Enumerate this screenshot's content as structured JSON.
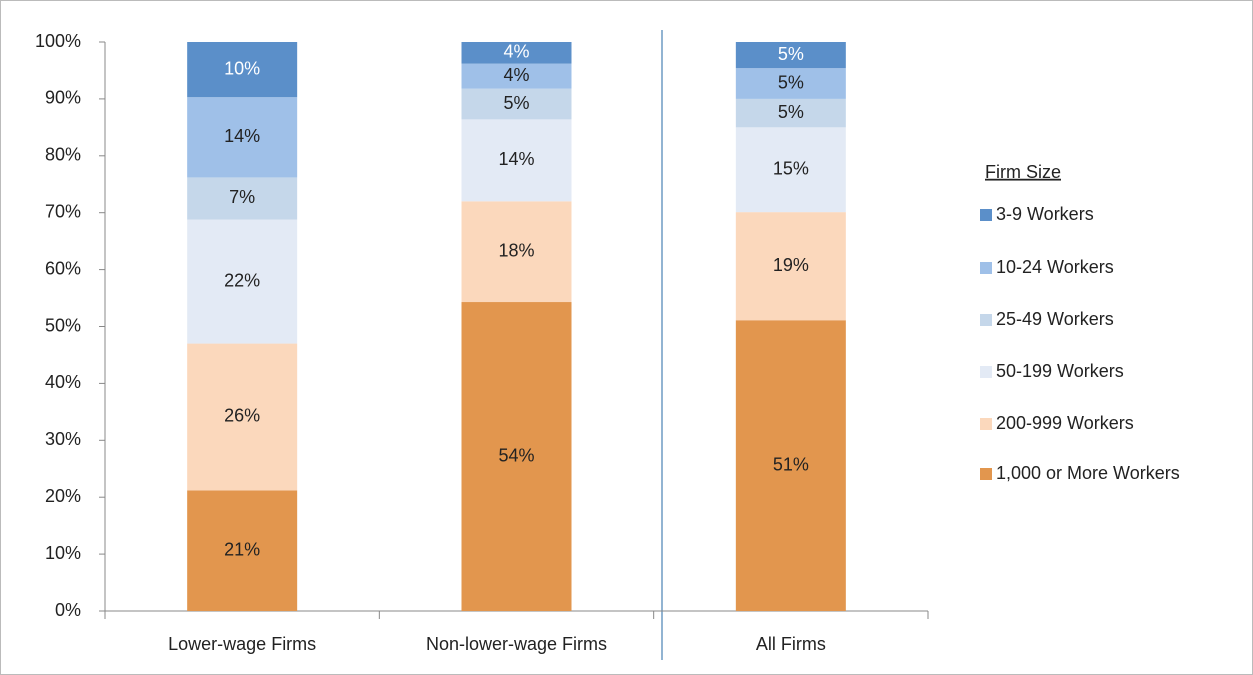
{
  "chart_data": {
    "type": "stacked_bar",
    "categories": [
      "Lower-wage Firms",
      "Non-lower-wage Firms",
      "All Firms"
    ],
    "series": [
      {
        "name": "1,000 or More Workers",
        "color": "#e2964e",
        "values": [
          21.2,
          54.3,
          51.1
        ],
        "value_labels": [
          "21%",
          "54%",
          "51%"
        ]
      },
      {
        "name": "200-999 Workers",
        "color": "#fbd8bc",
        "values": [
          25.8,
          17.7,
          19.0
        ],
        "value_labels": [
          "26%",
          "18%",
          "19%"
        ]
      },
      {
        "name": "50-199 Workers",
        "color": "#e3eaf5",
        "values": [
          21.8,
          14.4,
          14.9
        ],
        "value_labels": [
          "22%",
          "14%",
          "15%"
        ]
      },
      {
        "name": "25-49 Workers",
        "color": "#c5d7ea",
        "values": [
          7.4,
          5.4,
          5.0
        ],
        "value_labels": [
          "7%",
          "5%",
          "5%"
        ]
      },
      {
        "name": "10-24 Workers",
        "color": "#9fc0e8",
        "values": [
          14.1,
          4.4,
          5.4
        ],
        "value_labels": [
          "14%",
          "4%",
          "5%"
        ]
      },
      {
        "name": "3-9 Workers",
        "color": "#5b8fc9",
        "values": [
          9.7,
          3.8,
          4.6
        ],
        "value_labels": [
          "10%",
          "4%",
          "5%"
        ]
      }
    ],
    "legend_title": "Firm Size",
    "legend": "right",
    "ylim": [
      0,
      100
    ],
    "yticks": [
      {
        "value": 0,
        "label": "0%"
      },
      {
        "value": 10,
        "label": "10%"
      },
      {
        "value": 20,
        "label": "20%"
      },
      {
        "value": 30,
        "label": "30%"
      },
      {
        "value": 40,
        "label": "40%"
      },
      {
        "value": 50,
        "label": "50%"
      },
      {
        "value": 60,
        "label": "60%"
      },
      {
        "value": 70,
        "label": "70%"
      },
      {
        "value": 80,
        "label": "80%"
      },
      {
        "value": 90,
        "label": "90%"
      },
      {
        "value": 100,
        "label": "100%"
      }
    ]
  }
}
